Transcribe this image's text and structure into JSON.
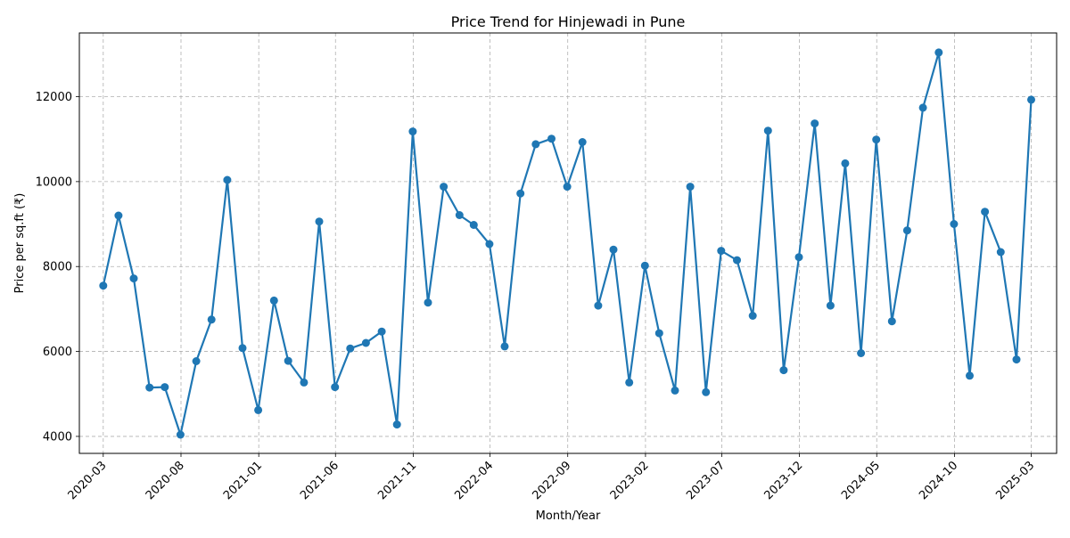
{
  "chart_data": {
    "type": "line",
    "title": "Price Trend for Hinjewadi in Pune",
    "xlabel": "Month/Year",
    "ylabel": "Price per sq.ft (₹)",
    "x_tick_labels": [
      "2020-03",
      "2020-08",
      "2021-01",
      "2021-06",
      "2021-11",
      "2022-04",
      "2022-09",
      "2023-02",
      "2023-07",
      "2023-12",
      "2024-05",
      "2024-10",
      "2025-03"
    ],
    "y_ticks": [
      4000,
      6000,
      8000,
      10000,
      12000
    ],
    "ylim": [
      3600,
      13500
    ],
    "xlim": [
      "2020-01-14",
      "2025-04-20"
    ],
    "grid": true,
    "series": [
      {
        "color": "#1f77b4",
        "x": [
          "2020-03-01",
          "2020-03-31",
          "2020-04-30",
          "2020-05-31",
          "2020-06-30",
          "2020-07-31",
          "2020-08-31",
          "2020-09-30",
          "2020-10-31",
          "2020-11-30",
          "2020-12-31",
          "2021-01-31",
          "2021-02-28",
          "2021-03-31",
          "2021-04-30",
          "2021-05-31",
          "2021-06-30",
          "2021-07-31",
          "2021-08-31",
          "2021-09-30",
          "2021-10-31",
          "2021-11-30",
          "2021-12-31",
          "2022-01-31",
          "2022-02-28",
          "2022-03-31",
          "2022-04-30",
          "2022-05-31",
          "2022-06-30",
          "2022-07-31",
          "2022-08-31",
          "2022-09-30",
          "2022-10-31",
          "2022-11-30",
          "2022-12-31",
          "2023-01-31",
          "2023-02-28",
          "2023-03-31",
          "2023-04-30",
          "2023-05-31",
          "2023-06-30",
          "2023-07-31",
          "2023-08-31",
          "2023-09-30",
          "2023-10-31",
          "2023-11-30",
          "2023-12-31",
          "2024-01-31",
          "2024-02-29",
          "2024-03-31",
          "2024-04-30",
          "2024-05-31",
          "2024-06-30",
          "2024-07-31",
          "2024-08-31",
          "2024-09-30",
          "2024-10-31",
          "2024-11-30",
          "2024-12-31",
          "2025-01-31",
          "2025-03-01"
        ],
        "values": [
          7550,
          9200,
          7720,
          5150,
          5160,
          4040,
          5770,
          6750,
          10040,
          6080,
          4620,
          7200,
          5780,
          5270,
          9060,
          5160,
          6070,
          6200,
          6470,
          4280,
          11180,
          7150,
          9880,
          9210,
          8980,
          8530,
          6120,
          9720,
          10880,
          11010,
          9880,
          10930,
          7080,
          8400,
          5270,
          8020,
          6430,
          5080,
          9880,
          5040,
          8370,
          8150,
          6840,
          11200,
          5560,
          8220,
          11370,
          7080,
          10430,
          5960,
          10990,
          6710,
          8850,
          11740,
          13040,
          9000,
          5430,
          9290,
          8340,
          5810,
          11930
        ]
      }
    ]
  }
}
